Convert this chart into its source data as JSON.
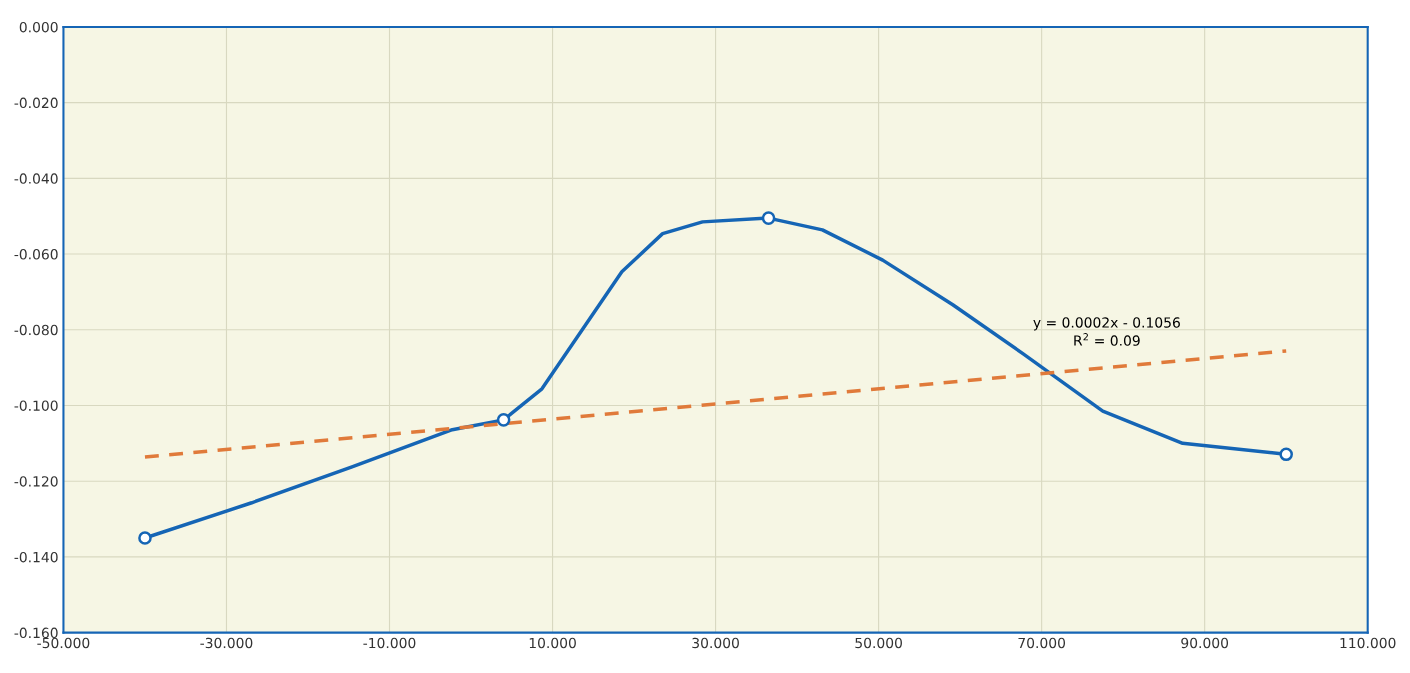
{
  "chart_data": {
    "type": "line",
    "series": [
      {
        "color": "#1565b5",
        "line_style": "solid",
        "x": [
          -40,
          -26.9,
          -14.6,
          -2.3,
          4,
          8.7,
          13.6,
          18.5,
          23.5,
          28.4,
          36.5,
          43.1,
          50.5,
          59.1,
          67.7,
          77.5,
          87.3,
          100
        ],
        "values": [
          -0.135,
          -0.1257,
          -0.1162,
          -0.1064,
          -0.1038,
          -0.0956,
          -0.0801,
          -0.0647,
          -0.0546,
          -0.0515,
          -0.0505,
          -0.0536,
          -0.0616,
          -0.0734,
          -0.0863,
          -0.1015,
          -0.11,
          -0.1129
        ]
      },
      {
        "type": "scatter",
        "color": "#1565b5",
        "marker": "circle",
        "x": [
          -40,
          4,
          36.5,
          100
        ],
        "values": [
          -0.135,
          -0.1038,
          -0.0505,
          -0.1129
        ]
      },
      {
        "type": "line",
        "color": "#e07a3a",
        "marker": "none",
        "line_style": "dashed",
        "x": [
          -40,
          100
        ],
        "values": [
          -0.1136,
          -0.0856
        ]
      }
    ],
    "xlim": [
      -50,
      110
    ],
    "xticks": [
      {
        "value": -50,
        "label": "-50.000"
      },
      {
        "value": -30,
        "label": "-30.000"
      },
      {
        "value": -10,
        "label": "-10.000"
      },
      {
        "value": 10,
        "label": "10.000"
      },
      {
        "value": 30,
        "label": "30.000"
      },
      {
        "value": 50,
        "label": "50.000"
      },
      {
        "value": 70,
        "label": "70.000"
      },
      {
        "value": 90,
        "label": "90.000"
      },
      {
        "value": 110,
        "label": "110.000"
      }
    ],
    "ylim": [
      -0.16,
      0
    ],
    "yticks": [
      {
        "value": -0.16,
        "label": "-0.160"
      },
      {
        "value": -0.14,
        "label": "-0.140"
      },
      {
        "value": -0.12,
        "label": "-0.120"
      },
      {
        "value": -0.1,
        "label": "-0.100"
      },
      {
        "value": -0.08,
        "label": "-0.080"
      },
      {
        "value": -0.06,
        "label": "-0.060"
      },
      {
        "value": -0.04,
        "label": "-0.040"
      },
      {
        "value": -0.02,
        "label": "-0.020"
      },
      {
        "value": 0,
        "label": "0.000"
      }
    ],
    "grid": true,
    "annotations": [
      "y = 0.0002x - 0.1056",
      "R$^{2}$ = 0.09"
    ]
  }
}
